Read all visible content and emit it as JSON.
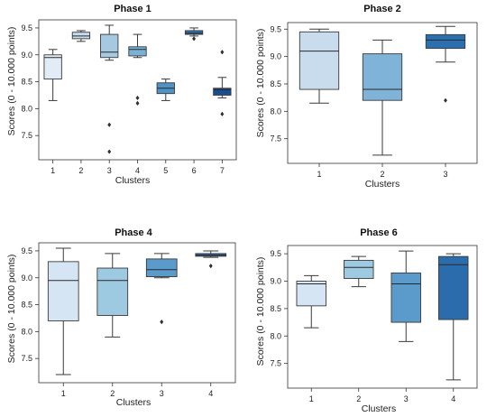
{
  "chart_data": [
    {
      "type": "box",
      "title": "Phase 1",
      "xlabel": "Clusters",
      "ylabel": "Scores (0 - 10.000 points)",
      "ylim": [
        7.05,
        9.65
      ],
      "yticks": [
        "7.5",
        "8.0",
        "8.5",
        "9.0",
        "9.5"
      ],
      "ytick_values": [
        7.5,
        8.0,
        8.5,
        9.0,
        9.5
      ],
      "categories": [
        "1",
        "2",
        "3",
        "4",
        "5",
        "6",
        "7"
      ],
      "colors": [
        "#e2ecf6",
        "#c6dbef",
        "#a5c9e1",
        "#79b2d6",
        "#4f93c6",
        "#2a6faf",
        "#1b4e8f"
      ],
      "boxes": [
        {
          "min": 8.15,
          "q1": 8.55,
          "median": 8.95,
          "q3": 9.0,
          "max": 9.1,
          "outliers": []
        },
        {
          "min": 9.25,
          "q1": 9.3,
          "median": 9.35,
          "q3": 9.42,
          "max": 9.45,
          "outliers": []
        },
        {
          "min": 8.9,
          "q1": 8.95,
          "median": 9.05,
          "q3": 9.38,
          "max": 9.55,
          "outliers": [
            7.7,
            7.2
          ]
        },
        {
          "min": 8.95,
          "q1": 8.98,
          "median": 9.1,
          "q3": 9.15,
          "max": 9.38,
          "outliers": [
            8.2,
            8.1
          ]
        },
        {
          "min": 8.15,
          "q1": 8.28,
          "median": 8.38,
          "q3": 8.48,
          "max": 8.55,
          "outliers": []
        },
        {
          "min": 9.35,
          "q1": 9.38,
          "median": 9.4,
          "q3": 9.45,
          "max": 9.5,
          "outliers": [
            9.3
          ]
        },
        {
          "min": 8.2,
          "q1": 8.25,
          "median": 8.35,
          "q3": 8.38,
          "max": 8.58,
          "outliers": [
            9.05,
            7.9
          ]
        }
      ]
    },
    {
      "type": "box",
      "title": "Phase 2",
      "xlabel": "Clusters",
      "ylabel": "Scores (0 - 10.000 points)",
      "ylim": [
        7.05,
        9.62
      ],
      "yticks": [
        "7.5",
        "8.0",
        "8.5",
        "9.0",
        "9.5"
      ],
      "ytick_values": [
        7.5,
        8.0,
        8.5,
        9.0,
        9.5
      ],
      "categories": [
        "1",
        "2",
        "3"
      ],
      "colors": [
        "#c9dcee",
        "#7fb3d8",
        "#2a6fb0"
      ],
      "boxes": [
        {
          "min": 8.15,
          "q1": 8.4,
          "median": 9.1,
          "q3": 9.45,
          "max": 9.5,
          "outliers": []
        },
        {
          "min": 7.2,
          "q1": 8.2,
          "median": 8.4,
          "q3": 9.05,
          "max": 9.3,
          "outliers": []
        },
        {
          "min": 8.9,
          "q1": 9.15,
          "median": 9.3,
          "q3": 9.4,
          "max": 9.55,
          "outliers": [
            8.2
          ]
        }
      ]
    },
    {
      "type": "box",
      "title": "Phase 4",
      "xlabel": "Clusters",
      "ylabel": "Scores (0 - 10.000 points)",
      "ylim": [
        7.05,
        9.65
      ],
      "yticks": [
        "7.5",
        "8.0",
        "8.5",
        "9.0",
        "9.5"
      ],
      "ytick_values": [
        7.5,
        8.0,
        8.5,
        9.0,
        9.5
      ],
      "categories": [
        "1",
        "2",
        "3",
        "4"
      ],
      "colors": [
        "#d6e5f3",
        "#9ecae1",
        "#5b9bcb",
        "#2b6cac"
      ],
      "boxes": [
        {
          "min": 7.2,
          "q1": 8.2,
          "median": 8.95,
          "q3": 9.3,
          "max": 9.55,
          "outliers": []
        },
        {
          "min": 7.9,
          "q1": 8.3,
          "median": 8.95,
          "q3": 9.18,
          "max": 9.45,
          "outliers": []
        },
        {
          "min": 9.0,
          "q1": 9.02,
          "median": 9.15,
          "q3": 9.35,
          "max": 9.45,
          "outliers": [
            8.18
          ]
        },
        {
          "min": 9.38,
          "q1": 9.4,
          "median": 9.42,
          "q3": 9.45,
          "max": 9.5,
          "outliers": [
            9.22
          ]
        }
      ]
    },
    {
      "type": "box",
      "title": "Phase 6",
      "xlabel": "Clusters",
      "ylabel": "Scores (0 - 10.000 points)",
      "ylim": [
        7.05,
        9.65
      ],
      "yticks": [
        "7.5",
        "8.0",
        "8.5",
        "9.0",
        "9.5"
      ],
      "ytick_values": [
        7.5,
        8.0,
        8.5,
        9.0,
        9.5
      ],
      "categories": [
        "1",
        "2",
        "3",
        "4"
      ],
      "colors": [
        "#d6e5f3",
        "#9ecae1",
        "#5b9bcb",
        "#2b6cac"
      ],
      "boxes": [
        {
          "min": 8.15,
          "q1": 8.55,
          "median": 8.95,
          "q3": 9.0,
          "max": 9.1,
          "outliers": []
        },
        {
          "min": 8.9,
          "q1": 9.05,
          "median": 9.25,
          "q3": 9.38,
          "max": 9.45,
          "outliers": []
        },
        {
          "min": 7.9,
          "q1": 8.25,
          "median": 8.95,
          "q3": 9.15,
          "max": 9.55,
          "outliers": []
        },
        {
          "min": 7.2,
          "q1": 8.3,
          "median": 9.3,
          "q3": 9.45,
          "max": 9.5,
          "outliers": []
        }
      ]
    }
  ]
}
